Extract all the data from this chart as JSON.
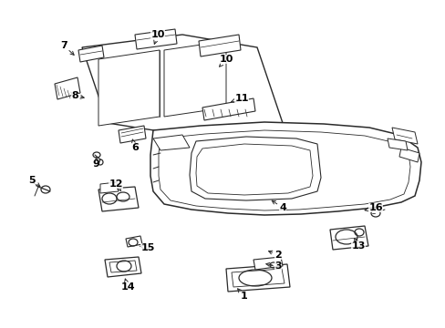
{
  "bg_color": "#ffffff",
  "lc": "#2a2a2a",
  "lw": 0.9,
  "fontsize": 8,
  "parts_labels": [
    [
      1,
      268,
      325,
      258,
      314
    ],
    [
      2,
      305,
      280,
      291,
      274
    ],
    [
      3,
      305,
      292,
      288,
      289
    ],
    [
      4,
      310,
      228,
      295,
      218
    ],
    [
      5,
      35,
      198,
      47,
      207
    ],
    [
      6,
      148,
      162,
      145,
      152
    ],
    [
      7,
      70,
      50,
      84,
      63
    ],
    [
      8,
      82,
      105,
      96,
      108
    ],
    [
      9,
      105,
      180,
      106,
      172
    ],
    [
      10,
      173,
      38,
      168,
      52
    ],
    [
      10,
      248,
      65,
      238,
      76
    ],
    [
      11,
      265,
      108,
      250,
      113
    ],
    [
      12,
      127,
      202,
      133,
      210
    ],
    [
      13,
      393,
      270,
      387,
      258
    ],
    [
      14,
      140,
      315,
      137,
      305
    ],
    [
      15,
      162,
      272,
      153,
      270
    ],
    [
      16,
      412,
      228,
      399,
      231
    ]
  ]
}
